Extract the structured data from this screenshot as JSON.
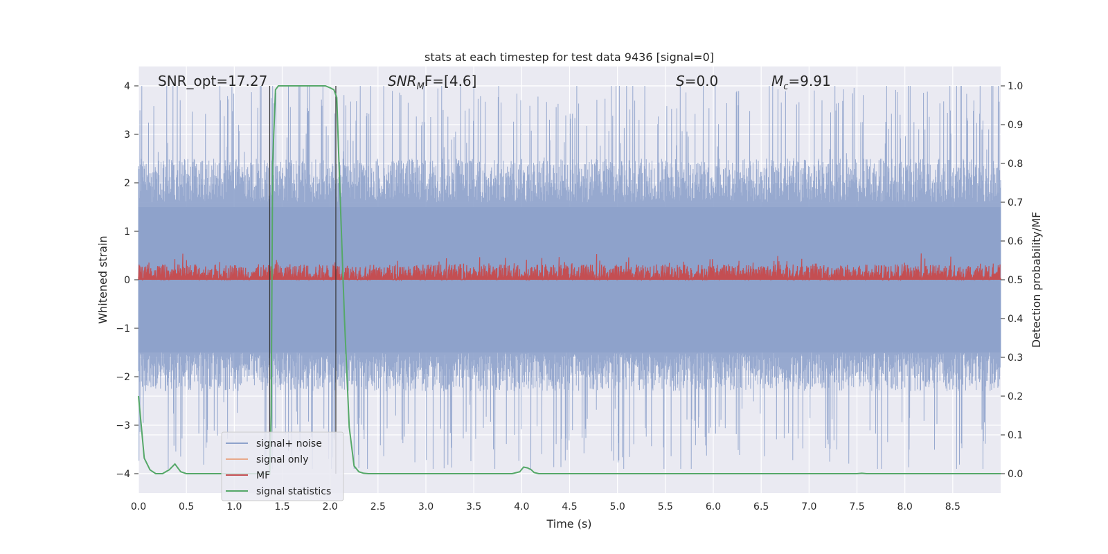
{
  "chart_data": {
    "type": "line",
    "title": "stats at each timestep for test data 9436 [signal=0]",
    "xlabel": "Time (s)",
    "ylabel": "Whitened strain",
    "ylabel_right": "Detection probability/MF",
    "xlim": [
      0.0,
      9.0
    ],
    "ylim": [
      -4.4,
      4.4
    ],
    "ylim_right": [
      -0.05,
      1.05
    ],
    "x_ticks": [
      "0.0",
      "0.5",
      "1.0",
      "1.5",
      "2.0",
      "2.5",
      "3.0",
      "3.5",
      "4.0",
      "4.5",
      "5.0",
      "5.5",
      "6.0",
      "6.5",
      "7.0",
      "7.5",
      "8.0",
      "8.5"
    ],
    "y_ticks": [
      "4",
      "3",
      "2",
      "1",
      "0",
      "−1",
      "−2",
      "−3",
      "−4"
    ],
    "y_ticks_right": [
      "1.0",
      "0.9",
      "0.8",
      "0.7",
      "0.6",
      "0.5",
      "0.4",
      "0.3",
      "0.2",
      "0.1",
      "0.0"
    ],
    "annotations": {
      "snr_opt": "SNR_opt=17.27",
      "snr_mf_main": "SNR",
      "snr_mf_sub": "M",
      "snr_mf_rest": "F=[4.6]",
      "s_main": "S",
      "s_rest": "=0.0",
      "mc_main": "M",
      "mc_sub": "c",
      "mc_rest": "=9.91"
    },
    "vertical_lines_x": [
      1.37,
      2.06
    ],
    "legend": {
      "location": "lower-left",
      "entries": [
        {
          "label": "signal+ noise",
          "color": "#8ea2cb"
        },
        {
          "label": "signal only",
          "color": "#e8a98a"
        },
        {
          "label": "MF",
          "color": "#c44e52"
        },
        {
          "label": "signal statistics",
          "color": "#55a868"
        }
      ]
    },
    "series": [
      {
        "name": "signal statistics",
        "axis": "right",
        "color": "#55a868",
        "x": [
          0.0,
          0.03,
          0.06,
          0.12,
          0.18,
          0.25,
          0.32,
          0.38,
          0.44,
          0.5,
          0.6,
          0.8,
          1.0,
          1.2,
          1.3,
          1.36,
          1.37,
          1.385,
          1.4,
          1.43,
          1.46,
          1.5,
          1.6,
          1.8,
          1.95,
          2.0,
          2.04,
          2.07,
          2.1,
          2.15,
          2.2,
          2.25,
          2.3,
          2.35,
          2.4,
          2.5,
          3.0,
          3.5,
          3.9,
          3.98,
          4.02,
          4.06,
          4.1,
          4.13,
          4.18,
          4.5,
          5.0,
          6.0,
          7.0,
          7.5,
          7.55,
          7.6,
          8.0,
          9.0
        ],
        "y": [
          0.2,
          0.12,
          0.04,
          0.01,
          0.0,
          0.0,
          0.01,
          0.025,
          0.005,
          0.0,
          0.0,
          0.0,
          0.0,
          0.0,
          0.0,
          0.0,
          0.0,
          0.15,
          0.8,
          0.99,
          1.0,
          1.0,
          1.0,
          1.0,
          1.0,
          0.995,
          0.99,
          0.97,
          0.75,
          0.4,
          0.12,
          0.02,
          0.005,
          0.001,
          0.0,
          0.0,
          0.0,
          0.0,
          0.0,
          0.005,
          0.017,
          0.015,
          0.01,
          0.003,
          0.0,
          0.0,
          0.0,
          0.0,
          0.0,
          0.0,
          0.001,
          0.0,
          0.0,
          0.0
        ]
      }
    ]
  }
}
